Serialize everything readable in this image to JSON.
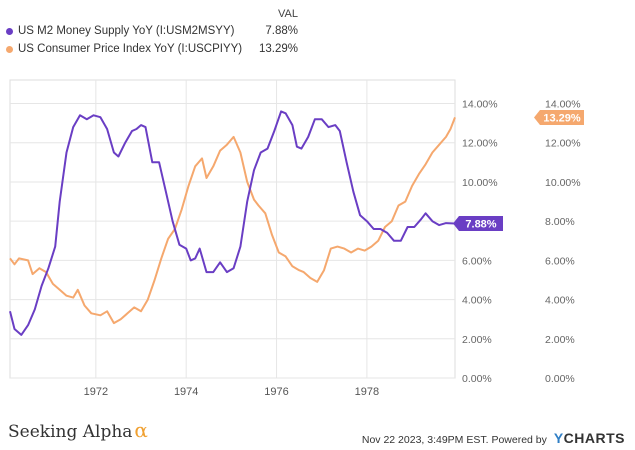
{
  "legend": {
    "header": "VAL",
    "items": [
      {
        "name": "US M2 Money Supply YoY (I:USM2MSYY)",
        "value": "7.88%",
        "color": "#6a3ec4"
      },
      {
        "name": "US Consumer Price Index YoY (I:USCPIYY)",
        "value": "13.29%",
        "color": "#f5a86e"
      }
    ]
  },
  "footer": {
    "brand": "Seeking Alpha",
    "brand_symbol": "α",
    "timestamp": "Nov 22 2023, 3:49PM EST.",
    "powered_by": "Powered by",
    "provider_y": "Y",
    "provider_rest": "CHARTS"
  },
  "chart_data": {
    "type": "line",
    "x_ticks": [
      "1972",
      "1974",
      "1976",
      "1978"
    ],
    "y_ticks": [
      "0.00%",
      "2.00%",
      "4.00%",
      "6.00%",
      "8.00%",
      "10.00%",
      "12.00%",
      "14.00%"
    ],
    "ylim": [
      0,
      15.2
    ],
    "xlim": [
      1970.1,
      1979.95
    ],
    "end_labels": [
      "7.88%",
      "13.29%"
    ],
    "series": [
      {
        "name": "US M2 Money Supply YoY (I:USM2MSYY)",
        "color": "#6a3ec4",
        "points": [
          [
            1970.1,
            3.4
          ],
          [
            1970.2,
            2.5
          ],
          [
            1970.35,
            2.2
          ],
          [
            1970.5,
            2.7
          ],
          [
            1970.65,
            3.5
          ],
          [
            1970.8,
            4.7
          ],
          [
            1970.95,
            5.6
          ],
          [
            1971.1,
            6.7
          ],
          [
            1971.2,
            9.0
          ],
          [
            1971.35,
            11.5
          ],
          [
            1971.5,
            12.8
          ],
          [
            1971.65,
            13.4
          ],
          [
            1971.8,
            13.2
          ],
          [
            1971.95,
            13.4
          ],
          [
            1972.1,
            13.3
          ],
          [
            1972.25,
            12.7
          ],
          [
            1972.4,
            11.5
          ],
          [
            1972.5,
            11.3
          ],
          [
            1972.65,
            12.0
          ],
          [
            1972.8,
            12.6
          ],
          [
            1972.9,
            12.7
          ],
          [
            1973.0,
            12.9
          ],
          [
            1973.1,
            12.8
          ],
          [
            1973.25,
            11.0
          ],
          [
            1973.4,
            11.0
          ],
          [
            1973.55,
            9.5
          ],
          [
            1973.7,
            8.0
          ],
          [
            1973.85,
            6.8
          ],
          [
            1974.0,
            6.6
          ],
          [
            1974.1,
            6.0
          ],
          [
            1974.2,
            6.1
          ],
          [
            1974.3,
            6.6
          ],
          [
            1974.45,
            5.4
          ],
          [
            1974.6,
            5.4
          ],
          [
            1974.75,
            5.9
          ],
          [
            1974.9,
            5.4
          ],
          [
            1975.05,
            5.6
          ],
          [
            1975.2,
            6.7
          ],
          [
            1975.35,
            9.0
          ],
          [
            1975.5,
            10.6
          ],
          [
            1975.65,
            11.5
          ],
          [
            1975.8,
            11.7
          ],
          [
            1975.95,
            12.6
          ],
          [
            1976.1,
            13.6
          ],
          [
            1976.2,
            13.5
          ],
          [
            1976.35,
            12.9
          ],
          [
            1976.45,
            11.8
          ],
          [
            1976.55,
            11.7
          ],
          [
            1976.7,
            12.3
          ],
          [
            1976.85,
            13.2
          ],
          [
            1977.0,
            13.2
          ],
          [
            1977.15,
            12.8
          ],
          [
            1977.3,
            12.9
          ],
          [
            1977.4,
            12.6
          ],
          [
            1977.55,
            11.0
          ],
          [
            1977.7,
            9.5
          ],
          [
            1977.85,
            8.3
          ],
          [
            1978.0,
            8.0
          ],
          [
            1978.15,
            7.6
          ],
          [
            1978.3,
            7.6
          ],
          [
            1978.45,
            7.4
          ],
          [
            1978.6,
            7.0
          ],
          [
            1978.75,
            7.0
          ],
          [
            1978.9,
            7.7
          ],
          [
            1979.05,
            7.7
          ],
          [
            1979.2,
            8.1
          ],
          [
            1979.3,
            8.4
          ],
          [
            1979.45,
            8.0
          ],
          [
            1979.6,
            7.8
          ],
          [
            1979.75,
            7.9
          ],
          [
            1979.95,
            7.88
          ]
        ]
      },
      {
        "name": "US Consumer Price Index YoY (I:USCPIYY)",
        "color": "#f5a86e",
        "points": [
          [
            1970.1,
            6.1
          ],
          [
            1970.2,
            5.8
          ],
          [
            1970.3,
            6.1
          ],
          [
            1970.5,
            6.0
          ],
          [
            1970.6,
            5.3
          ],
          [
            1970.75,
            5.6
          ],
          [
            1970.9,
            5.4
          ],
          [
            1971.05,
            4.8
          ],
          [
            1971.2,
            4.5
          ],
          [
            1971.35,
            4.2
          ],
          [
            1971.5,
            4.1
          ],
          [
            1971.6,
            4.5
          ],
          [
            1971.75,
            3.7
          ],
          [
            1971.9,
            3.3
          ],
          [
            1972.1,
            3.2
          ],
          [
            1972.25,
            3.4
          ],
          [
            1972.4,
            2.8
          ],
          [
            1972.55,
            3.0
          ],
          [
            1972.7,
            3.3
          ],
          [
            1972.85,
            3.6
          ],
          [
            1973.0,
            3.4
          ],
          [
            1973.15,
            4.0
          ],
          [
            1973.3,
            5.0
          ],
          [
            1973.45,
            6.1
          ],
          [
            1973.6,
            7.1
          ],
          [
            1973.75,
            7.6
          ],
          [
            1973.9,
            8.6
          ],
          [
            1974.05,
            9.8
          ],
          [
            1974.2,
            10.8
          ],
          [
            1974.35,
            11.2
          ],
          [
            1974.45,
            10.2
          ],
          [
            1974.6,
            10.8
          ],
          [
            1974.75,
            11.6
          ],
          [
            1974.9,
            11.9
          ],
          [
            1975.05,
            12.3
          ],
          [
            1975.2,
            11.5
          ],
          [
            1975.35,
            10.0
          ],
          [
            1975.5,
            9.1
          ],
          [
            1975.6,
            8.8
          ],
          [
            1975.75,
            8.4
          ],
          [
            1975.9,
            7.3
          ],
          [
            1976.05,
            6.4
          ],
          [
            1976.2,
            6.2
          ],
          [
            1976.35,
            5.7
          ],
          [
            1976.5,
            5.5
          ],
          [
            1976.6,
            5.4
          ],
          [
            1976.75,
            5.1
          ],
          [
            1976.9,
            4.9
          ],
          [
            1977.05,
            5.5
          ],
          [
            1977.2,
            6.6
          ],
          [
            1977.35,
            6.7
          ],
          [
            1977.5,
            6.6
          ],
          [
            1977.65,
            6.4
          ],
          [
            1977.8,
            6.6
          ],
          [
            1977.95,
            6.5
          ],
          [
            1978.1,
            6.7
          ],
          [
            1978.25,
            7.0
          ],
          [
            1978.4,
            7.7
          ],
          [
            1978.55,
            8.0
          ],
          [
            1978.7,
            8.8
          ],
          [
            1978.85,
            9.0
          ],
          [
            1979.0,
            9.8
          ],
          [
            1979.15,
            10.4
          ],
          [
            1979.3,
            10.9
          ],
          [
            1979.45,
            11.5
          ],
          [
            1979.6,
            11.9
          ],
          [
            1979.75,
            12.3
          ],
          [
            1979.85,
            12.7
          ],
          [
            1979.95,
            13.29
          ]
        ]
      }
    ]
  }
}
